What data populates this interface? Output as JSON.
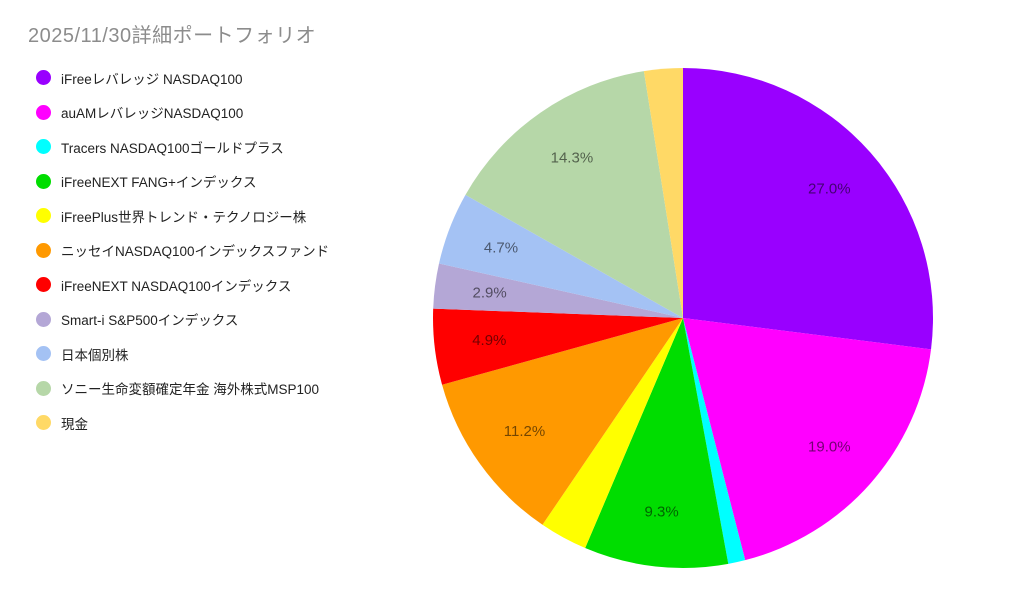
{
  "title": "2025/11/30詳細ポートフォリオ",
  "colors": {
    "background": "#ffffff",
    "title_text": "#8c8c8c",
    "legend_text": "#222222",
    "slice_label_text": "rgba(0,0,0,0.55)"
  },
  "chart_data": {
    "type": "pie",
    "title": "2025/11/30詳細ポートフォリオ",
    "legend_position": "left",
    "start_angle": "12-o'clock",
    "direction": "clockwise",
    "unit": "%",
    "slices": [
      {
        "name": "iFreeレバレッジ NASDAQ100",
        "value": 27.0,
        "pct_label": "27.0%",
        "color": "#9900ff",
        "label_visible": true
      },
      {
        "name": "auAMレバレッジNASDAQ100",
        "value": 19.0,
        "pct_label": "19.0%",
        "color": "#ff00ff",
        "label_visible": true
      },
      {
        "name": "Tracers NASDAQ100ゴールドプラス",
        "value": 1.1,
        "pct_label": "",
        "color": "#00ffff",
        "label_visible": false
      },
      {
        "name": "iFreeNEXT FANG+インデックス",
        "value": 9.3,
        "pct_label": "9.3%",
        "color": "#00dd00",
        "label_visible": true
      },
      {
        "name": "iFreePlus世界トレンド・テクノロジー株",
        "value": 3.1,
        "pct_label": "",
        "color": "#ffff00",
        "label_visible": false
      },
      {
        "name": "ニッセイNASDAQ100インデックスファンド",
        "value": 11.2,
        "pct_label": "11.2%",
        "color": "#ff9900",
        "label_visible": true
      },
      {
        "name": "iFreeNEXT NASDAQ100インデックス",
        "value": 4.9,
        "pct_label": "4.9%",
        "color": "#ff0000",
        "label_visible": true
      },
      {
        "name": "Smart-i S&P500インデックス",
        "value": 2.9,
        "pct_label": "2.9%",
        "color": "#b4a7d6",
        "label_visible": true
      },
      {
        "name": "日本個別株",
        "value": 4.7,
        "pct_label": "4.7%",
        "color": "#a4c2f4",
        "label_visible": true
      },
      {
        "name": "ソニー生命変額確定年金 海外株式MSP100",
        "value": 14.3,
        "pct_label": "14.3%",
        "color": "#b6d7a8",
        "label_visible": true
      },
      {
        "name": "現金",
        "value": 2.5,
        "pct_label": "",
        "color": "#ffd966",
        "label_visible": false
      }
    ]
  }
}
